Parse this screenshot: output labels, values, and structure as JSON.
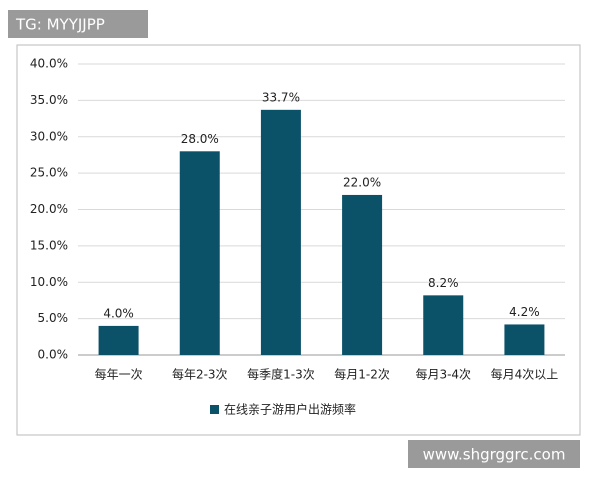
{
  "chart_data": {
    "type": "bar",
    "annotations": [
      "TG: MYYJJPP",
      "www.shgrggrc.com"
    ],
    "categories": [
      "每年一次",
      "每年2-3次",
      "每季度1-3次",
      "每月1-2次",
      "每月3-4次",
      "每月4次以上"
    ],
    "series": [
      {
        "name": "在线亲子游用户出游频率",
        "color": "#0b5269",
        "values": [
          4.0,
          28.0,
          33.7,
          22.0,
          8.2,
          4.2
        ],
        "value_labels": [
          "4.0%",
          "28.0%",
          "33.7%",
          "22.0%",
          "8.2%",
          "4.2%"
        ]
      }
    ],
    "ylim": [
      0,
      40
    ],
    "yticks": [
      {
        "value": 0,
        "label": "0.0%"
      },
      {
        "value": 5,
        "label": "5.0%"
      },
      {
        "value": 10,
        "label": "10.0%"
      },
      {
        "value": 15,
        "label": "15.0%"
      },
      {
        "value": 20,
        "label": "20.0%"
      },
      {
        "value": 25,
        "label": "25.0%"
      },
      {
        "value": 30,
        "label": "30.0%"
      },
      {
        "value": 35,
        "label": "35.0%"
      },
      {
        "value": 40,
        "label": "40.0%"
      }
    ],
    "grid": true,
    "legend": "bottom"
  }
}
